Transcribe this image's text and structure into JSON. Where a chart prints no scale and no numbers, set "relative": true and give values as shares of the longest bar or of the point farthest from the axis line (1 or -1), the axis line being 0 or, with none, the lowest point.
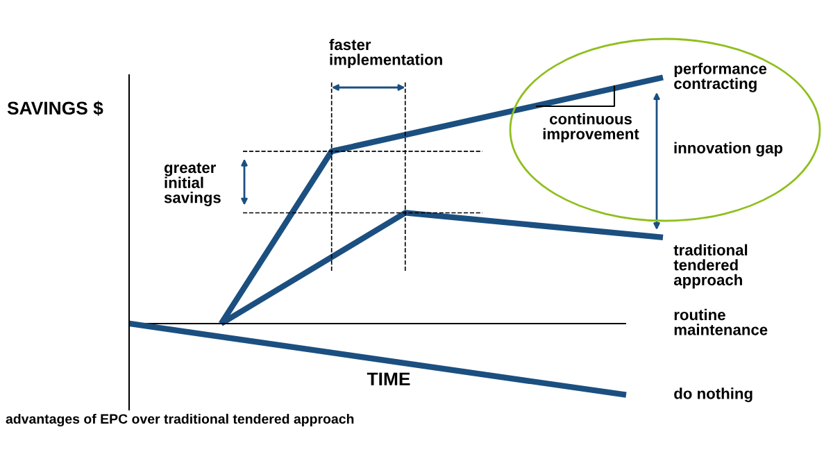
{
  "chart_data": {
    "type": "line",
    "relative": true,
    "ylabel": "SAVINGS $",
    "xlabel": "TIME",
    "categories": [
      null,
      null,
      null,
      null,
      null,
      null,
      null,
      null,
      null,
      null,
      null,
      null,
      null,
      null,
      null,
      null,
      null,
      null,
      null,
      null,
      null,
      null,
      null,
      null,
      null,
      null,
      null,
      null,
      null,
      null
    ],
    "series": [
      {
        "name": "performance contracting",
        "color": "#1b4f80",
        "values": [
          null,
          null,
          null,
          null,
          null,
          0,
          null,
          null,
          null,
          null,
          null,
          0.7,
          null,
          null,
          null,
          null,
          null,
          null,
          null,
          null,
          null,
          null,
          null,
          null,
          null,
          null,
          null,
          null,
          null,
          1.0
        ]
      },
      {
        "name": "traditional tendered approach",
        "color": "#1b4f80",
        "values": [
          null,
          null,
          null,
          null,
          null,
          0,
          null,
          null,
          null,
          null,
          null,
          null,
          null,
          null,
          null,
          0.45,
          null,
          null,
          null,
          null,
          null,
          null,
          null,
          null,
          null,
          null,
          null,
          null,
          null,
          0.35
        ]
      },
      {
        "name": "routine maintenance",
        "color": "#000000",
        "values": [
          0,
          null,
          null,
          null,
          null,
          null,
          null,
          null,
          null,
          null,
          null,
          null,
          null,
          null,
          null,
          null,
          null,
          null,
          null,
          null,
          null,
          null,
          null,
          null,
          null,
          null,
          null,
          0,
          null,
          null
        ]
      },
      {
        "name": "do nothing",
        "color": "#1b4f80",
        "values": [
          0,
          null,
          null,
          null,
          null,
          null,
          null,
          null,
          null,
          null,
          null,
          null,
          null,
          null,
          null,
          null,
          null,
          null,
          null,
          null,
          null,
          null,
          null,
          null,
          null,
          null,
          null,
          -0.29,
          null,
          null
        ]
      }
    ],
    "ref_lines": [
      {
        "axis": "y",
        "value": 0.7,
        "line_style": "dashed",
        "color": "#000000"
      },
      {
        "axis": "y",
        "value": 0.45,
        "line_style": "dashed",
        "color": "#000000"
      }
    ],
    "annotations": [
      "faster implementation",
      "greater initial savings",
      "continuous improvement",
      "innovation gap",
      "advantages of EPC over traditional tendered approach"
    ],
    "legend": "right",
    "marker": "none",
    "line_style": "solid"
  }
}
